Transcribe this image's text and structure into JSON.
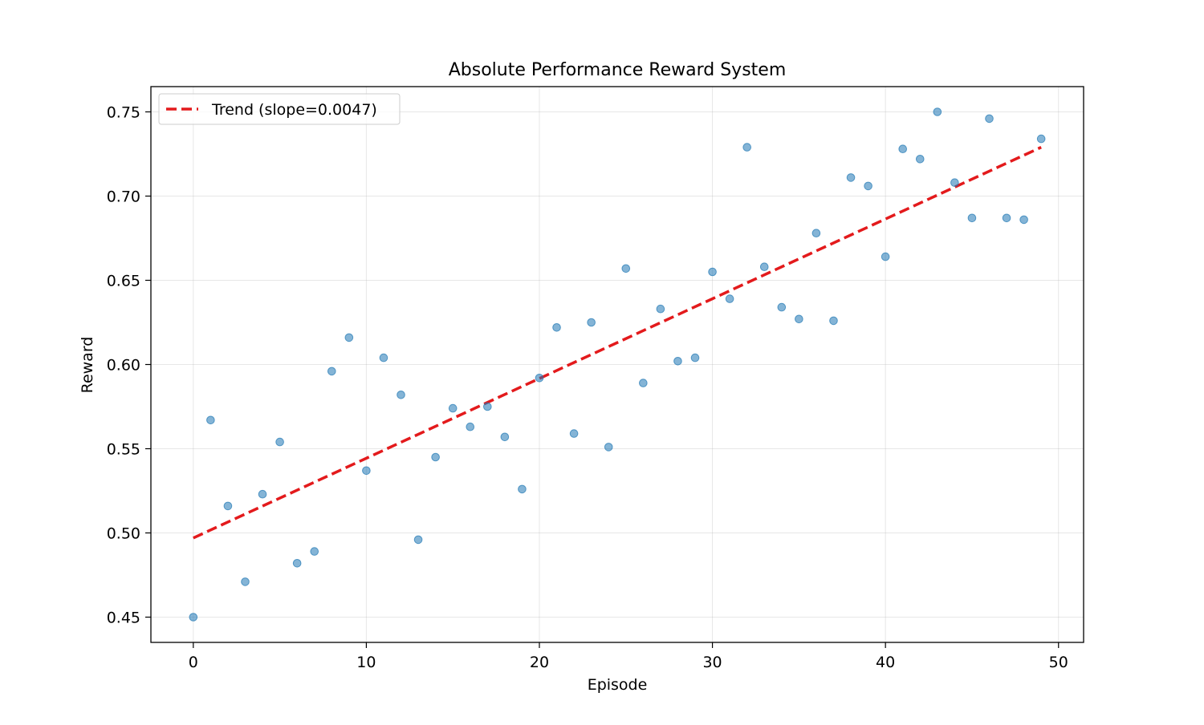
{
  "chart_data": {
    "type": "scatter",
    "title": "Absolute Performance Reward System",
    "xlabel": "Episode",
    "ylabel": "Reward",
    "xlim": [
      -2.45,
      51.45
    ],
    "ylim": [
      0.435,
      0.765
    ],
    "xticks": [
      0,
      10,
      20,
      30,
      40,
      50
    ],
    "xtick_labels": [
      "0",
      "10",
      "20",
      "30",
      "40",
      "50"
    ],
    "yticks": [
      0.45,
      0.5,
      0.55,
      0.6,
      0.65,
      0.7,
      0.75
    ],
    "ytick_labels": [
      "0.45",
      "0.50",
      "0.55",
      "0.60",
      "0.65",
      "0.70",
      "0.75"
    ],
    "grid": true,
    "legend_position": "top-left",
    "series": [
      {
        "kind": "scatter",
        "color": "#1f77b4",
        "x": [
          0,
          1,
          2,
          3,
          4,
          5,
          6,
          7,
          8,
          9,
          10,
          11,
          12,
          13,
          14,
          15,
          16,
          17,
          18,
          19,
          20,
          21,
          22,
          23,
          24,
          25,
          26,
          27,
          28,
          29,
          30,
          31,
          32,
          33,
          34,
          35,
          36,
          37,
          38,
          39,
          40,
          41,
          42,
          43,
          44,
          45,
          46,
          47,
          48,
          49
        ],
        "y": [
          0.45,
          0.567,
          0.516,
          0.471,
          0.523,
          0.554,
          0.482,
          0.489,
          0.596,
          0.616,
          0.537,
          0.604,
          0.582,
          0.496,
          0.545,
          0.574,
          0.563,
          0.575,
          0.557,
          0.526,
          0.592,
          0.622,
          0.559,
          0.625,
          0.551,
          0.657,
          0.589,
          0.633,
          0.602,
          0.604,
          0.655,
          0.639,
          0.729,
          0.658,
          0.634,
          0.627,
          0.678,
          0.626,
          0.711,
          0.706,
          0.664,
          0.728,
          0.722,
          0.75,
          0.708,
          0.687,
          0.746,
          0.687,
          0.686,
          0.734
        ]
      },
      {
        "kind": "trend-line",
        "name": "Trend (slope=0.0047)",
        "color": "#e31a1c",
        "x": [
          0,
          49
        ],
        "y": [
          0.497,
          0.729
        ]
      }
    ]
  }
}
